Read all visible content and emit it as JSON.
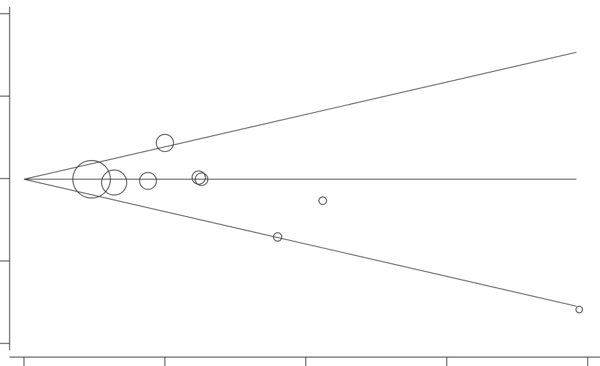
{
  "chart_data": {
    "type": "scatter",
    "title": "",
    "xlabel": "",
    "ylabel": "",
    "grid": false,
    "x_axis_ticks": 5,
    "y_axis_ticks": 5,
    "xlim": [
      0,
      1
    ],
    "ylim": [
      -1,
      1
    ],
    "pooled_estimate": 0,
    "funnel": {
      "upper": [
        [
          0.0,
          0.0
        ],
        [
          0.98,
          0.77
        ]
      ],
      "lower": [
        [
          0.0,
          0.0
        ],
        [
          0.98,
          -0.77
        ]
      ]
    },
    "points": [
      {
        "x": 0.12,
        "y": 0.0,
        "weight": 0.9
      },
      {
        "x": 0.16,
        "y": -0.02,
        "weight": 0.55
      },
      {
        "x": 0.22,
        "y": -0.01,
        "weight": 0.32
      },
      {
        "x": 0.25,
        "y": 0.22,
        "weight": 0.33
      },
      {
        "x": 0.31,
        "y": 0.01,
        "weight": 0.22
      },
      {
        "x": 0.315,
        "y": 0.0,
        "weight": 0.2
      },
      {
        "x": 0.45,
        "y": -0.35,
        "weight": 0.08
      },
      {
        "x": 0.53,
        "y": -0.13,
        "weight": 0.06
      },
      {
        "x": 0.985,
        "y": -0.79,
        "weight": 0.03
      }
    ]
  }
}
